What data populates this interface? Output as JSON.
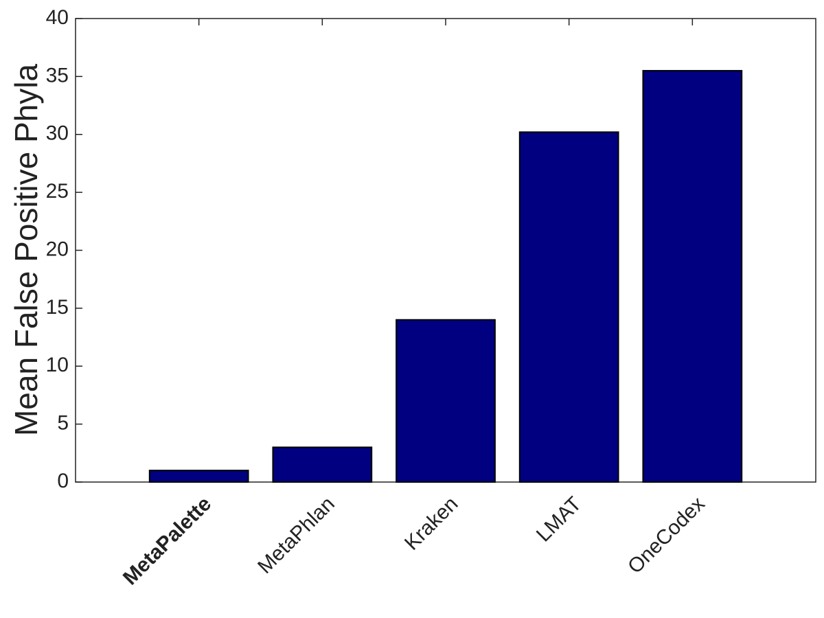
{
  "chart_data": {
    "type": "bar",
    "y_label": "Mean False Positive Phyla",
    "categories": [
      "MetaPalette",
      "MetaPhlan",
      "Kraken",
      "LMAT",
      "OneCodex"
    ],
    "values": [
      1,
      3,
      14,
      30.2,
      35.5
    ],
    "color": "#000080",
    "ylim": [
      0,
      40
    ],
    "yticks": [
      0,
      5,
      10,
      15,
      20,
      25,
      30,
      35,
      40
    ],
    "grid": false
  }
}
